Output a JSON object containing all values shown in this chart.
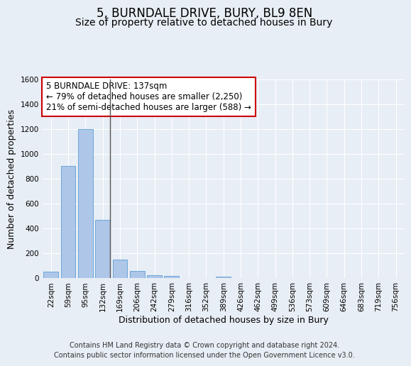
{
  "title": "5, BURNDALE DRIVE, BURY, BL9 8EN",
  "subtitle": "Size of property relative to detached houses in Bury",
  "xlabel": "Distribution of detached houses by size in Bury",
  "ylabel": "Number of detached properties",
  "footer_line1": "Contains HM Land Registry data © Crown copyright and database right 2024.",
  "footer_line2": "Contains public sector information licensed under the Open Government Licence v3.0.",
  "categories": [
    "22sqm",
    "59sqm",
    "95sqm",
    "132sqm",
    "169sqm",
    "206sqm",
    "242sqm",
    "279sqm",
    "316sqm",
    "352sqm",
    "389sqm",
    "426sqm",
    "462sqm",
    "499sqm",
    "536sqm",
    "573sqm",
    "609sqm",
    "646sqm",
    "683sqm",
    "719sqm",
    "756sqm"
  ],
  "values": [
    50,
    900,
    1200,
    470,
    150,
    60,
    25,
    15,
    0,
    0,
    10,
    0,
    0,
    0,
    0,
    0,
    0,
    0,
    0,
    0,
    0
  ],
  "bar_color": "#aec6e8",
  "bar_edge_color": "#5a9fd4",
  "highlight_bar_index": 3,
  "highlight_line_color": "#555555",
  "property_label": "5 BURNDALE DRIVE: 137sqm",
  "annotation_line1": "← 79% of detached houses are smaller (2,250)",
  "annotation_line2": "21% of semi-detached houses are larger (588) →",
  "annotation_box_color": "#ffffff",
  "annotation_box_edge_color": "#cc0000",
  "ylim": [
    0,
    1600
  ],
  "yticks": [
    0,
    200,
    400,
    600,
    800,
    1000,
    1200,
    1400,
    1600
  ],
  "background_color": "#e8eef5",
  "plot_background_color": "#e8eef5",
  "grid_color": "#ffffff",
  "title_fontsize": 12,
  "subtitle_fontsize": 10,
  "axis_label_fontsize": 9,
  "tick_fontsize": 7.5,
  "annotation_fontsize": 8.5,
  "footer_fontsize": 7
}
